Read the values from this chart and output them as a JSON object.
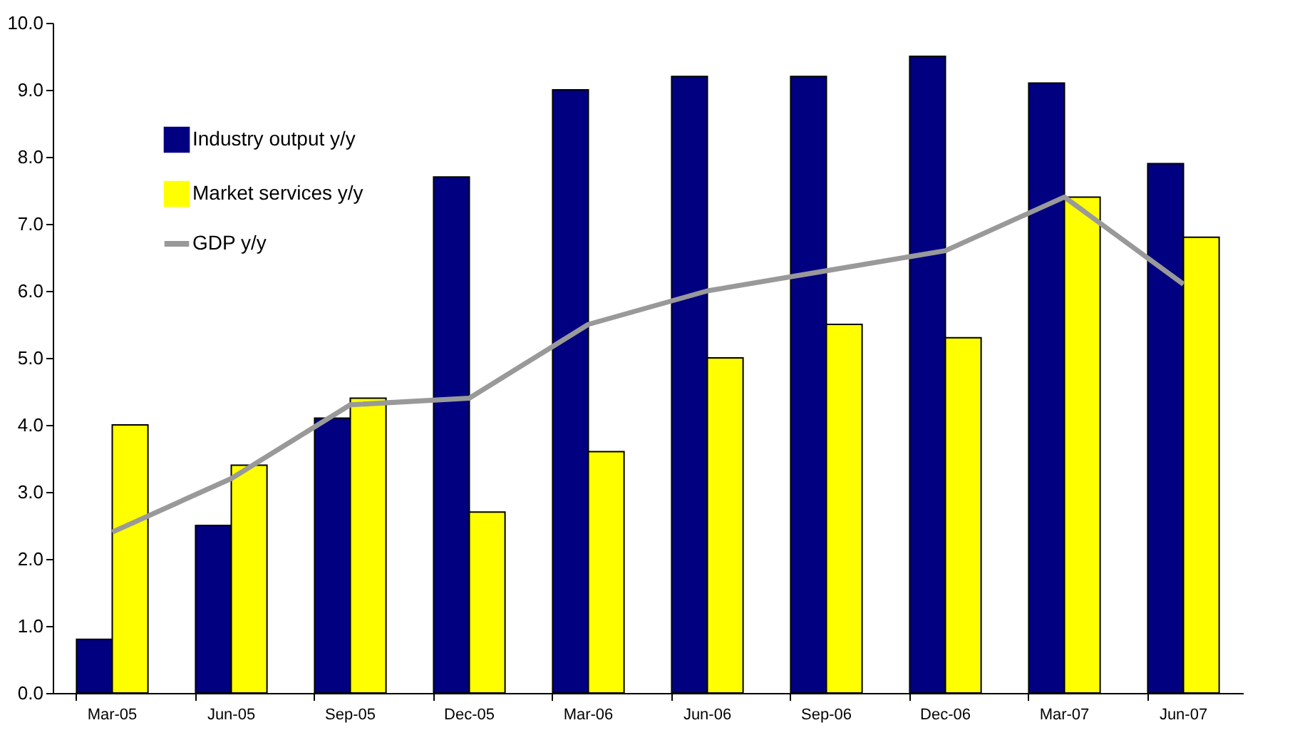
{
  "chart_data": {
    "type": "bar",
    "categories": [
      "Mar-05",
      "Jun-05",
      "Sep-05",
      "Dec-05",
      "Mar-06",
      "Jun-06",
      "Sep-06",
      "Dec-06",
      "Mar-07",
      "Jun-07"
    ],
    "series": [
      {
        "name": "Industry output y/y",
        "color": "#000080",
        "values": [
          0.8,
          2.5,
          4.1,
          7.7,
          9.0,
          9.2,
          9.2,
          9.5,
          9.1,
          7.9
        ]
      },
      {
        "name": "Market services y/y",
        "color": "#ffff00",
        "values": [
          4.0,
          3.4,
          4.4,
          2.7,
          3.6,
          5.0,
          5.5,
          5.3,
          7.4,
          6.8
        ]
      },
      {
        "name": "GDP y/y",
        "type": "line",
        "color": "#999999",
        "values": [
          2.4,
          3.2,
          4.3,
          4.4,
          5.5,
          6.0,
          6.3,
          6.6,
          7.4,
          6.1
        ]
      }
    ],
    "ylim": [
      0,
      10
    ],
    "yticks": [
      {
        "value": 0,
        "label": "0.0"
      },
      {
        "value": 1,
        "label": "1.0"
      },
      {
        "value": 2,
        "label": "2.0"
      },
      {
        "value": 3,
        "label": "3.0"
      },
      {
        "value": 4,
        "label": "4.0"
      },
      {
        "value": 5,
        "label": "5.0"
      },
      {
        "value": 6,
        "label": "6.0"
      },
      {
        "value": 7,
        "label": "7.0"
      },
      {
        "value": 8,
        "label": "8.0"
      },
      {
        "value": 9,
        "label": "9.0"
      },
      {
        "value": 10,
        "label": "10.0"
      }
    ],
    "grid": false,
    "legend": "top left",
    "marker": "none",
    "line_style": "solid"
  }
}
